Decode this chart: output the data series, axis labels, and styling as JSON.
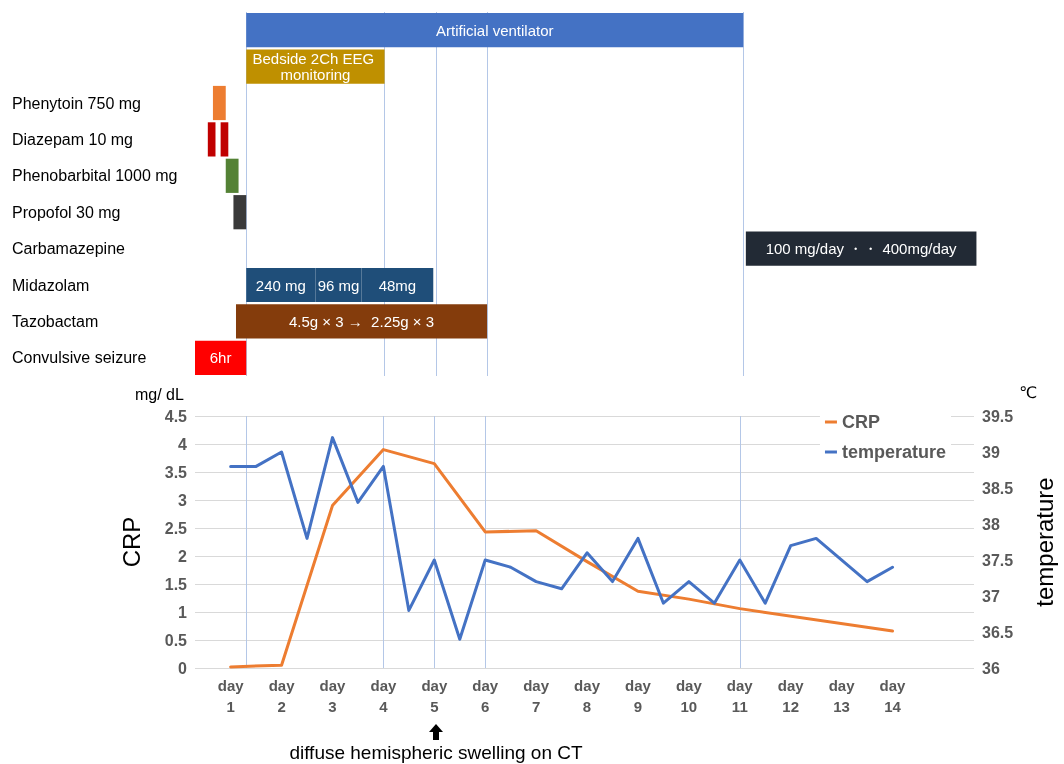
{
  "chart_data": [
    {
      "type": "bar",
      "orientation": "horizontal",
      "categories": [
        null,
        null,
        "Phenytoin 750 mg",
        "Diazepam 10 mg",
        "Phenobarbital 1000 mg",
        "Propofol 30 mg",
        "Carbamazepine",
        "Midazolam",
        "Tazobactam",
        "Convulsive seizure"
      ],
      "xlim": [
        0.3,
        15.6
      ],
      "tick_labels": "y",
      "series": [
        {
          "name": "Artificial ventilator",
          "color": "#4472c4",
          "base": [
            1.3,
            null,
            null,
            null,
            null,
            null,
            null,
            null,
            null,
            null
          ],
          "values": [
            9.7,
            null,
            null,
            null,
            null,
            null,
            null,
            null,
            null,
            null
          ]
        },
        {
          "name": "Bedside 2Ch EEG monitoring",
          "color": "#bf9000",
          "base": [
            null,
            1.3,
            null,
            null,
            null,
            null,
            null,
            null,
            null,
            null
          ],
          "values": [
            null,
            2.7,
            null,
            null,
            null,
            null,
            null,
            null,
            null,
            null
          ]
        },
        {
          "color": "#ed7d31",
          "base": [
            null,
            null,
            0.65,
            null,
            null,
            null,
            null,
            null,
            null,
            null
          ],
          "values": [
            null,
            null,
            0.25,
            null,
            null,
            null,
            null,
            null,
            null,
            null
          ]
        },
        {
          "color": "#c00000",
          "base": [
            null,
            null,
            null,
            0.55,
            null,
            null,
            null,
            null,
            null,
            null
          ],
          "values": [
            null,
            null,
            null,
            0.15,
            null,
            null,
            null,
            null,
            null,
            null
          ]
        },
        {
          "color": "#c00000",
          "base": [
            null,
            null,
            null,
            0.8,
            null,
            null,
            null,
            null,
            null,
            null
          ],
          "values": [
            null,
            null,
            null,
            0.15,
            null,
            null,
            null,
            null,
            null,
            null
          ]
        },
        {
          "color": "#548235",
          "base": [
            null,
            null,
            null,
            null,
            0.9,
            null,
            null,
            null,
            null,
            null
          ],
          "values": [
            null,
            null,
            null,
            null,
            0.25,
            null,
            null,
            null,
            null,
            null
          ]
        },
        {
          "color": "#3a3a3a",
          "base": [
            null,
            null,
            null,
            null,
            null,
            1.05,
            null,
            null,
            null,
            null
          ],
          "values": [
            null,
            null,
            null,
            null,
            null,
            0.25,
            null,
            null,
            null,
            null
          ]
        },
        {
          "name": "100 mg/day ・・ 400mg/day",
          "color": "#222a35",
          "base": [
            null,
            null,
            null,
            null,
            null,
            null,
            11.05,
            null,
            null,
            null
          ],
          "values": [
            null,
            null,
            null,
            null,
            null,
            null,
            4.5,
            null,
            null,
            null
          ]
        },
        {
          "name": "240 mg",
          "color": "#1f4e79",
          "base": [
            null,
            null,
            null,
            null,
            null,
            null,
            null,
            1.3,
            null,
            null
          ],
          "values": [
            null,
            null,
            null,
            null,
            null,
            null,
            null,
            1.35,
            null,
            null
          ]
        },
        {
          "name": "96 mg",
          "color": "#1f4e79",
          "base": [
            null,
            null,
            null,
            null,
            null,
            null,
            null,
            2.65,
            null,
            null
          ],
          "values": [
            null,
            null,
            null,
            null,
            null,
            null,
            null,
            0.9,
            null,
            null
          ]
        },
        {
          "name": "48mg",
          "color": "#1f4e79",
          "base": [
            null,
            null,
            null,
            null,
            null,
            null,
            null,
            3.55,
            null,
            null
          ],
          "values": [
            null,
            null,
            null,
            null,
            null,
            null,
            null,
            1.4,
            null,
            null
          ]
        },
        {
          "name": "4.5g × 3 →  2.25g × 3",
          "color": "#843c0c",
          "base": [
            null,
            null,
            null,
            null,
            null,
            null,
            null,
            null,
            1.1,
            null
          ],
          "values": [
            null,
            null,
            null,
            null,
            null,
            null,
            null,
            null,
            4.9,
            null
          ]
        },
        {
          "name": "6hr",
          "color": "#ff0000",
          "base": [
            null,
            null,
            null,
            null,
            null,
            null,
            null,
            null,
            null,
            0.3
          ],
          "values": [
            null,
            null,
            null,
            null,
            null,
            null,
            null,
            null,
            null,
            1.0
          ]
        }
      ],
      "ref_lines": [
        {
          "axis": "x",
          "value": 1.3,
          "color": "#b4c7e7"
        },
        {
          "axis": "x",
          "value": 4,
          "color": "#b4c7e7"
        },
        {
          "axis": "x",
          "value": 5,
          "color": "#b4c7e7"
        },
        {
          "axis": "x",
          "value": 6,
          "color": "#b4c7e7"
        },
        {
          "axis": "x",
          "value": 11,
          "color": "#b4c7e7"
        }
      ]
    },
    {
      "type": "line",
      "ylabel": "CRP",
      "y2label": "temperature",
      "xlim": [
        0.3,
        15.6
      ],
      "xlabel": "day",
      "xticks": [
        1,
        2,
        3,
        4,
        5,
        6,
        7,
        8,
        9,
        10,
        11,
        12,
        13,
        14
      ],
      "ylim": [
        0,
        4.5
      ],
      "yticks": [
        0,
        0.5,
        1,
        1.5,
        2,
        2.5,
        3,
        3.5,
        4,
        4.5
      ],
      "y2lim": [
        36,
        39.5
      ],
      "y2ticks": [
        36,
        36.5,
        37,
        37.5,
        38,
        38.5,
        39,
        39.5
      ],
      "grid": "y",
      "legend": "top right",
      "marker": "none",
      "line_style": "solid",
      "series": [
        {
          "name": "CRP",
          "color": "#ed7d31",
          "x": [
            1,
            2,
            3,
            4,
            5,
            6,
            7,
            8,
            9,
            10,
            11,
            14
          ],
          "values": [
            0.02,
            0.05,
            2.9,
            3.9,
            3.65,
            2.43,
            2.45,
            1.9,
            1.37,
            1.23,
            1.06,
            0.66
          ]
        },
        {
          "name": "temperature",
          "color": "#4472c4",
          "axis": "y2",
          "x": [
            1,
            1.5,
            2,
            2.5,
            3,
            3.5,
            4,
            4.5,
            5,
            5.5,
            6,
            6.5,
            7,
            7.5,
            8,
            8.5,
            9,
            9.5,
            10,
            10.5,
            11,
            11.5,
            12,
            12.5,
            13.5,
            14
          ],
          "values": [
            38.8,
            38.8,
            39.0,
            37.8,
            39.2,
            38.3,
            38.8,
            36.8,
            37.5,
            36.4,
            37.5,
            37.4,
            37.2,
            37.1,
            37.6,
            37.2,
            37.8,
            36.9,
            37.2,
            36.9,
            37.5,
            36.9,
            37.7,
            37.8,
            37.2,
            37.4
          ]
        }
      ],
      "ref_lines": [
        {
          "axis": "x",
          "value": 1.3,
          "color": "#b4c7e7"
        },
        {
          "axis": "x",
          "value": 4,
          "color": "#b4c7e7"
        },
        {
          "axis": "x",
          "value": 5,
          "color": "#b4c7e7"
        },
        {
          "axis": "x",
          "value": 6,
          "color": "#b4c7e7"
        },
        {
          "axis": "x",
          "value": 11,
          "color": "#b4c7e7"
        }
      ],
      "annotations": [
        "mg/ dL",
        "℃",
        "diffuse hemispheric swelling on CT"
      ]
    }
  ]
}
